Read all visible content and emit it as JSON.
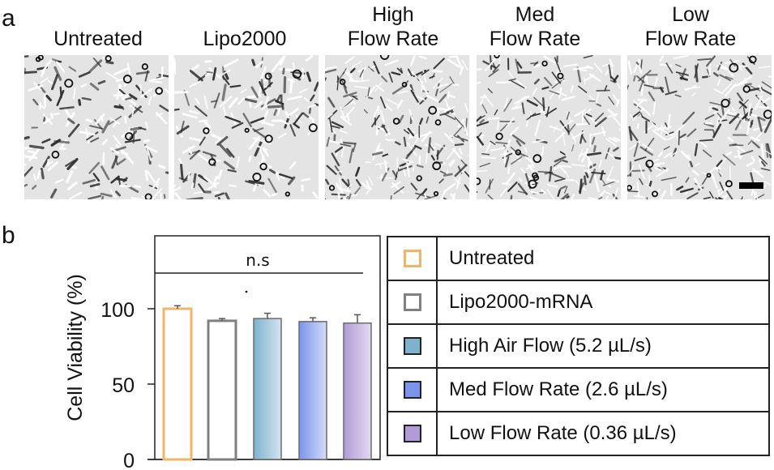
{
  "panel_a": {
    "label": "a",
    "images": [
      {
        "title_lines": [
          "Untreated"
        ],
        "texture_seed": 3,
        "style": "soft"
      },
      {
        "title_lines": [
          "Lipo2000"
        ],
        "texture_seed": 11,
        "style": "soft"
      },
      {
        "title_lines": [
          "High",
          "Flow Rate"
        ],
        "texture_seed": 23,
        "style": "dense"
      },
      {
        "title_lines": [
          "Med",
          "Flow Rate"
        ],
        "texture_seed": 37,
        "style": "dense"
      },
      {
        "title_lines": [
          "Low",
          "Flow Rate"
        ],
        "texture_seed": 51,
        "style": "dense",
        "scale_bar": true
      }
    ]
  },
  "panel_b": {
    "label": "b",
    "significance_label": "n.s"
  },
  "chart_data": {
    "type": "bar",
    "title": "",
    "xlabel": "",
    "ylabel": "Cell Viability (%)",
    "ylim": [
      0,
      140
    ],
    "yticks": [
      0,
      50,
      100
    ],
    "ytick_labels": [
      "0",
      "50",
      "100"
    ],
    "grid": false,
    "categories": [
      "Untreated",
      "Lipo2000-mRNA",
      "High Air Flow (5.2 µL/s)",
      "Med Flow Rate (2.6 µL/s)",
      "Low Flow Rate (0.36 µL/s)"
    ],
    "values": [
      100,
      92,
      93.5,
      91.5,
      90.5
    ],
    "errors": [
      2,
      1.5,
      3.5,
      2.5,
      5.5
    ],
    "styles": [
      {
        "fill": "none",
        "stroke": "#f0b56a",
        "gradient": null
      },
      {
        "fill": "none",
        "stroke": "#808080",
        "gradient": null
      },
      {
        "fill": "gradient",
        "stroke": "#6b6b6b",
        "gradient": [
          "#7fb1cf",
          "#d4e5ee"
        ]
      },
      {
        "fill": "gradient",
        "stroke": "#6b6b6b",
        "gradient": [
          "#7b94ea",
          "#d4dcf8"
        ]
      },
      {
        "fill": "gradient",
        "stroke": "#6b6b6b",
        "gradient": [
          "#b19bd6",
          "#e2d9ef"
        ]
      }
    ],
    "annotation": {
      "text": "n.s",
      "spans": "all bars"
    },
    "legend": {
      "placement": "right",
      "entries": [
        {
          "label": "Untreated",
          "swatch_fill": "#ffffff",
          "swatch_stroke": "#f0b56a"
        },
        {
          "label": "Lipo2000-mRNA",
          "swatch_fill": "#ffffff",
          "swatch_stroke": "#808080"
        },
        {
          "label": "High Air Flow (5.2 µL/s)",
          "swatch_fill": "#7fb1cf",
          "swatch_stroke": "#222222"
        },
        {
          "label": "Med Flow Rate (2.6 µL/s)",
          "swatch_fill": "#7b94ea",
          "swatch_stroke": "#222222"
        },
        {
          "label": "Low Flow Rate (0.36 µL/s)",
          "swatch_fill": "#b19bd6",
          "swatch_stroke": "#222222"
        }
      ]
    }
  }
}
